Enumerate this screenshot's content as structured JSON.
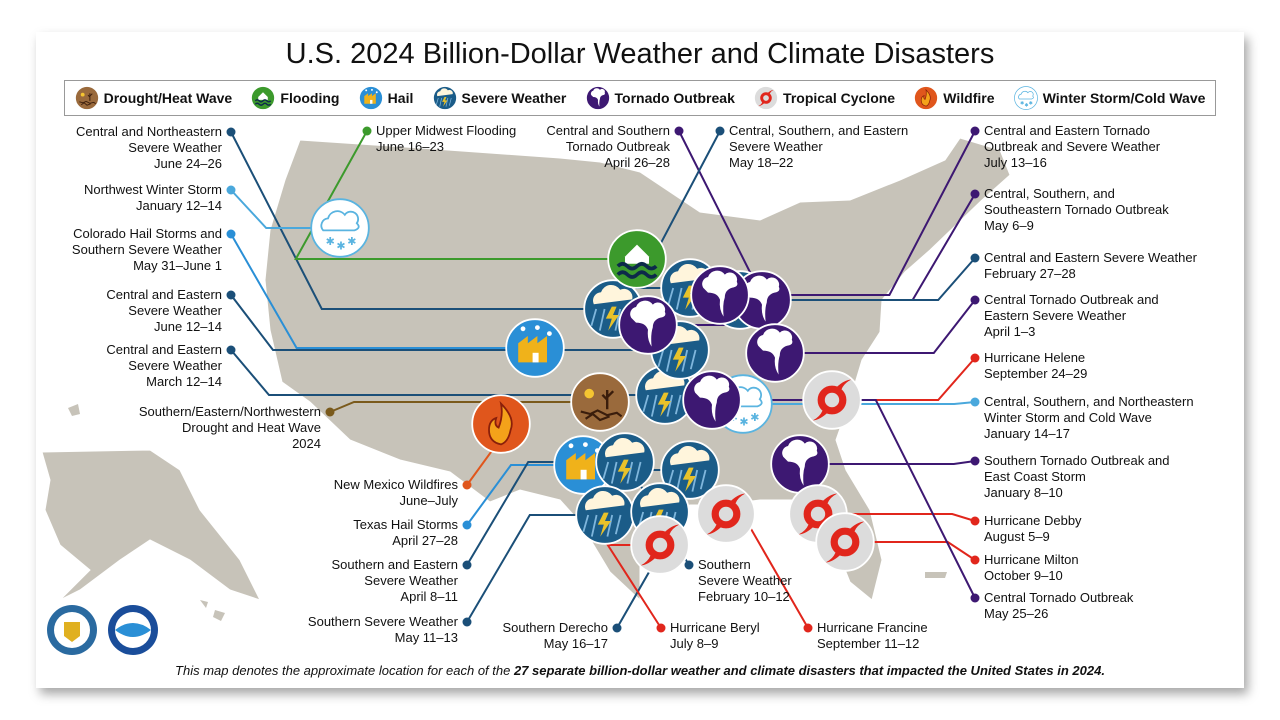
{
  "title": "U.S. 2024 Billion-Dollar Weather and Climate Disasters",
  "colors": {
    "land": "#c7c3b9",
    "severe": "#1b5c88",
    "tornado": "#3d1872",
    "cyclone": "#e1261c",
    "winter": "#5ab4e0",
    "flood": "#3c9a2c",
    "drought": "#9a6a3c",
    "wildfire": "#e0561c",
    "hail": "#2a8fd6"
  },
  "legend": [
    {
      "type": "drought",
      "label": "Drought/Heat Wave"
    },
    {
      "type": "flood",
      "label": "Flooding"
    },
    {
      "type": "hail",
      "label": "Hail"
    },
    {
      "type": "severe",
      "label": "Severe Weather"
    },
    {
      "type": "tornado",
      "label": "Tornado Outbreak"
    },
    {
      "type": "cyclone",
      "label": "Tropical Cyclone"
    },
    {
      "type": "wildfire",
      "label": "Wildfire"
    },
    {
      "type": "winter",
      "label": "Winter Storm/Cold Wave"
    }
  ],
  "events": [
    {
      "type": "severe",
      "lines": [
        "Central and Northeastern",
        "Severe Weather",
        "June 24–26"
      ]
    },
    {
      "type": "flood",
      "lines": [
        "Upper Midwest Flooding",
        "June 16–23"
      ]
    },
    {
      "type": "winter",
      "lines": [
        "Northwest Winter Storm",
        "January 12–14"
      ]
    },
    {
      "type": "hail",
      "lines": [
        "Colorado Hail Storms and",
        "Southern Severe Weather",
        "May 31–June 1"
      ]
    },
    {
      "type": "severe",
      "lines": [
        "Central and Eastern",
        "Severe Weather",
        "June 12–14"
      ]
    },
    {
      "type": "severe",
      "lines": [
        "Central and Eastern",
        "Severe Weather",
        "March 12–14"
      ]
    },
    {
      "type": "drought",
      "lines": [
        "Southern/Eastern/Northwestern",
        "Drought and Heat Wave",
        "2024"
      ]
    },
    {
      "type": "wildfire",
      "lines": [
        "New Mexico Wildfires",
        "June–July"
      ]
    },
    {
      "type": "hail",
      "lines": [
        "Texas Hail Storms",
        "April 27–28"
      ]
    },
    {
      "type": "severe",
      "lines": [
        "Southern and Eastern",
        "Severe Weather",
        "April 8–11"
      ]
    },
    {
      "type": "severe",
      "lines": [
        "Southern Severe Weather",
        "May 11–13"
      ]
    },
    {
      "type": "severe",
      "lines": [
        "Southern Derecho",
        "May 16–17"
      ]
    },
    {
      "type": "cyclone",
      "lines": [
        "Hurricane Beryl",
        "July 8–9"
      ]
    },
    {
      "type": "severe",
      "lines": [
        "Southern",
        "Severe Weather",
        "February 10–12"
      ]
    },
    {
      "type": "cyclone",
      "lines": [
        "Hurricane Francine",
        "September 11–12"
      ]
    },
    {
      "type": "tornado",
      "lines": [
        "Central and Southern",
        "Tornado Outbreak",
        "April 26–28"
      ]
    },
    {
      "type": "severe",
      "lines": [
        "Central, Southern, and Eastern",
        "Severe Weather",
        "May 18–22"
      ]
    },
    {
      "type": "tornado",
      "lines": [
        "Central and Eastern Tornado",
        "Outbreak and Severe Weather",
        "July 13–16"
      ]
    },
    {
      "type": "tornado",
      "lines": [
        "Central, Southern, and",
        "Southeastern Tornado Outbreak",
        "May 6–9"
      ]
    },
    {
      "type": "severe",
      "lines": [
        "Central and Eastern Severe Weather",
        "February 27–28"
      ]
    },
    {
      "type": "tornado",
      "lines": [
        "Central Tornado Outbreak and",
        "Eastern Severe Weather",
        "April 1–3"
      ]
    },
    {
      "type": "cyclone",
      "lines": [
        "Hurricane Helene",
        "September 24–29"
      ]
    },
    {
      "type": "winter",
      "lines": [
        "Central, Southern, and Northeastern",
        "Winter Storm and Cold Wave",
        "January 14–17"
      ]
    },
    {
      "type": "tornado",
      "lines": [
        "Southern Tornado Outbreak and",
        "East Coast Storm",
        "January 8–10"
      ]
    },
    {
      "type": "cyclone",
      "lines": [
        "Hurricane Debby",
        "August 5–9"
      ]
    },
    {
      "type": "cyclone",
      "lines": [
        "Hurricane Milton",
        "October 9–10"
      ]
    },
    {
      "type": "tornado",
      "lines": [
        "Central Tornado Outbreak",
        "May 25–26"
      ]
    }
  ],
  "footer": {
    "lead": "This map denotes the approximate location for each of the ",
    "bold": "27 separate billion-dollar weather and climate disasters that impacted the United States in 2024."
  },
  "logos": [
    {
      "name": "department-of-commerce-seal",
      "text": "U.S. Department of Commerce"
    },
    {
      "name": "noaa-logo",
      "text": "NOAA"
    }
  ]
}
